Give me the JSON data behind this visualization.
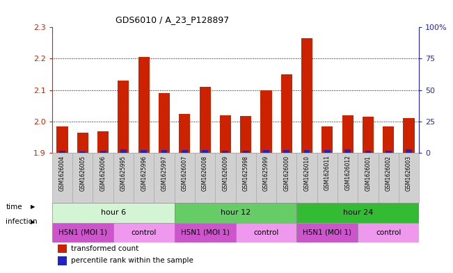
{
  "title": "GDS6010 / A_23_P128897",
  "samples": [
    "GSM1626004",
    "GSM1626005",
    "GSM1626006",
    "GSM1625995",
    "GSM1625996",
    "GSM1625997",
    "GSM1626007",
    "GSM1626008",
    "GSM1626009",
    "GSM1625998",
    "GSM1625999",
    "GSM1626000",
    "GSM1626010",
    "GSM1626011",
    "GSM1626012",
    "GSM1626001",
    "GSM1626002",
    "GSM1626003"
  ],
  "red_values": [
    1.985,
    1.965,
    1.968,
    2.13,
    2.205,
    2.09,
    2.025,
    2.11,
    2.02,
    2.018,
    2.1,
    2.15,
    2.265,
    1.985,
    2.02,
    2.015,
    1.985,
    2.01
  ],
  "blue_values": [
    0.006,
    0.005,
    0.007,
    0.01,
    0.009,
    0.008,
    0.008,
    0.009,
    0.007,
    0.007,
    0.009,
    0.009,
    0.009,
    0.008,
    0.01,
    0.007,
    0.006,
    0.012
  ],
  "ymin": 1.9,
  "ymax": 2.3,
  "yticks": [
    1.9,
    2.0,
    2.1,
    2.2,
    2.3
  ],
  "right_yticks": [
    0,
    25,
    50,
    75,
    100
  ],
  "right_ytick_labels": [
    "0",
    "25",
    "50",
    "75",
    "100%"
  ],
  "time_groups": [
    {
      "label": "hour 6",
      "start": 0,
      "end": 6,
      "color": "#d4f5d4"
    },
    {
      "label": "hour 12",
      "start": 6,
      "end": 12,
      "color": "#66cc66"
    },
    {
      "label": "hour 24",
      "start": 12,
      "end": 18,
      "color": "#33bb33"
    }
  ],
  "infection_groups": [
    {
      "label": "H5N1 (MOI 1)",
      "start": 0,
      "end": 3,
      "color": "#cc55cc"
    },
    {
      "label": "control",
      "start": 3,
      "end": 6,
      "color": "#ee99ee"
    },
    {
      "label": "H5N1 (MOI 1)",
      "start": 6,
      "end": 9,
      "color": "#cc55cc"
    },
    {
      "label": "control",
      "start": 9,
      "end": 12,
      "color": "#ee99ee"
    },
    {
      "label": "H5N1 (MOI 1)",
      "start": 12,
      "end": 15,
      "color": "#cc55cc"
    },
    {
      "label": "control",
      "start": 15,
      "end": 18,
      "color": "#ee99ee"
    }
  ],
  "bar_color_red": "#cc2200",
  "bar_color_blue": "#2222cc",
  "bar_width": 0.55,
  "background_color": "#ffffff",
  "axis_color_left": "#cc2200",
  "axis_color_right": "#2222cc",
  "sample_box_color": "#d0d0d0",
  "sample_box_edge": "#aaaaaa"
}
